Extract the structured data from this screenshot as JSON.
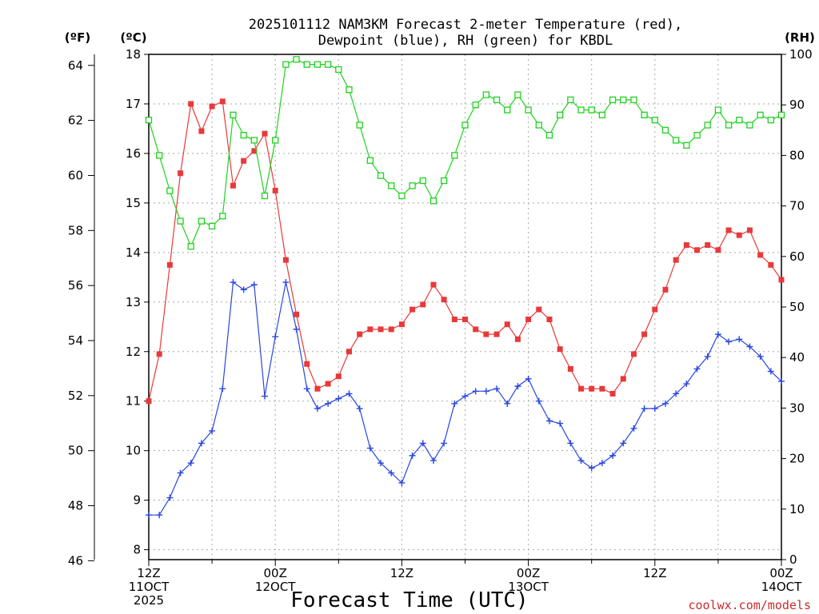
{
  "chart_data": {
    "type": "line",
    "title_line1": "2025101112 NAM3KM Forecast 2-meter Temperature (red),",
    "title_line2": "Dewpoint (blue), RH (green) for KBDL",
    "left_unit_f": "(ºF)",
    "left_unit_c": "(ºC)",
    "right_unit": "(RH)",
    "xlabel": "Forecast Time (UTC)",
    "credit": "coolwx.com/models",
    "x_range_hours": [
      0,
      60
    ],
    "x_ticks": [
      {
        "hour": 0,
        "line1": "12Z",
        "line2": "11OCT",
        "line3": "2025"
      },
      {
        "hour": 12,
        "line1": "00Z",
        "line2": "12OCT",
        "line3": ""
      },
      {
        "hour": 24,
        "line1": "12Z",
        "line2": "",
        "line3": ""
      },
      {
        "hour": 36,
        "line1": "00Z",
        "line2": "13OCT",
        "line3": ""
      },
      {
        "hour": 48,
        "line1": "12Z",
        "line2": "",
        "line3": ""
      },
      {
        "hour": 60,
        "line1": "00Z",
        "line2": "14OCT",
        "line3": ""
      }
    ],
    "y_celsius": {
      "min": 7.8,
      "max": 18.0,
      "ticks": [
        "8",
        "9",
        "10",
        "11",
        "12",
        "13",
        "14",
        "15",
        "16",
        "17",
        "18"
      ]
    },
    "y_fahrenheit": {
      "ticks": [
        "46",
        "48",
        "50",
        "52",
        "54",
        "56",
        "58",
        "60",
        "62",
        "64"
      ]
    },
    "y_rh": {
      "min": 0,
      "max": 100,
      "ticks": [
        "0",
        "10",
        "20",
        "30",
        "40",
        "50",
        "60",
        "70",
        "80",
        "90",
        "100"
      ]
    },
    "hours": [
      0,
      1,
      2,
      3,
      4,
      5,
      6,
      7,
      8,
      9,
      10,
      11,
      12,
      13,
      14,
      15,
      16,
      17,
      18,
      19,
      20,
      21,
      22,
      23,
      24,
      25,
      26,
      27,
      28,
      29,
      30,
      31,
      32,
      33,
      34,
      35,
      36,
      37,
      38,
      39,
      40,
      41,
      42,
      43,
      44,
      45,
      46,
      47,
      48,
      49,
      50,
      51,
      52,
      53,
      54,
      55,
      56,
      57,
      58,
      59,
      60
    ],
    "series": [
      {
        "name": "Temperature",
        "color": "#e8393a",
        "marker": "filled-square",
        "axis": "celsius",
        "values": [
          11.0,
          11.95,
          13.75,
          15.6,
          17.0,
          16.45,
          16.95,
          17.05,
          15.35,
          15.85,
          16.05,
          16.4,
          15.25,
          13.85,
          12.75,
          11.75,
          11.25,
          11.35,
          11.5,
          12.0,
          12.35,
          12.45,
          12.45,
          12.45,
          12.55,
          12.85,
          12.95,
          13.35,
          13.05,
          12.65,
          12.65,
          12.45,
          12.35,
          12.35,
          12.55,
          12.25,
          12.65,
          12.85,
          12.65,
          12.05,
          11.65,
          11.25,
          11.25,
          11.25,
          11.15,
          11.45,
          11.95,
          12.35,
          12.85,
          13.25,
          13.85,
          14.15,
          14.05,
          14.15,
          14.05,
          14.45,
          14.35,
          14.45,
          13.95,
          13.75,
          13.45
        ]
      },
      {
        "name": "Dewpoint",
        "color": "#2846e0",
        "marker": "plus",
        "axis": "celsius",
        "values": [
          8.7,
          8.7,
          9.05,
          9.55,
          9.75,
          10.15,
          10.4,
          11.25,
          13.4,
          13.25,
          13.35,
          11.1,
          12.3,
          13.4,
          12.45,
          11.25,
          10.85,
          10.95,
          11.05,
          11.15,
          10.85,
          10.05,
          9.75,
          9.55,
          9.35,
          9.9,
          10.15,
          9.8,
          10.15,
          10.95,
          11.1,
          11.2,
          11.2,
          11.25,
          10.95,
          11.3,
          11.45,
          11.0,
          10.6,
          10.55,
          10.15,
          9.8,
          9.65,
          9.75,
          9.9,
          10.15,
          10.45,
          10.85,
          10.85,
          10.95,
          11.15,
          11.35,
          11.65,
          11.9,
          12.35,
          12.2,
          12.25,
          12.1,
          11.9,
          11.6,
          11.4
        ]
      },
      {
        "name": "RH",
        "color": "#1ed21e",
        "marker": "open-square",
        "axis": "rh",
        "values": [
          87,
          80,
          73,
          67,
          62,
          67,
          66,
          68,
          88,
          84,
          83,
          72,
          83,
          98,
          99,
          98,
          98,
          98,
          97,
          93,
          86,
          79,
          76,
          74,
          72,
          74,
          75,
          71,
          75,
          80,
          86,
          90,
          92,
          91,
          89,
          92,
          89,
          86,
          84,
          88,
          91,
          89,
          89,
          88,
          91,
          91,
          91,
          88,
          87,
          85,
          83,
          82,
          84,
          86,
          89,
          86,
          87,
          86,
          88,
          87,
          88
        ]
      }
    ]
  }
}
